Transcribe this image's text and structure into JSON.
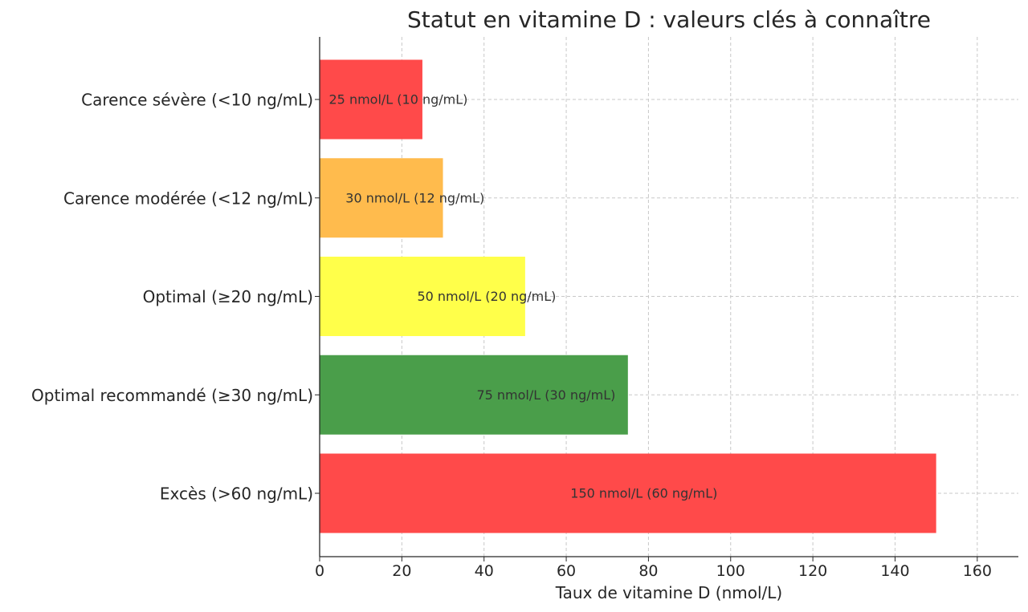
{
  "chart_data": {
    "type": "bar",
    "orientation": "horizontal",
    "title": "Statut en vitamine D : valeurs clés à connaître",
    "xlabel": "Taux de vitamine D (nmol/L)",
    "ylabel": "",
    "xlim": [
      0,
      170
    ],
    "xticks": [
      0,
      20,
      40,
      60,
      80,
      100,
      120,
      140,
      160
    ],
    "grid": true,
    "categories": [
      "Carence sévère (<10 ng/mL)",
      "Carence modérée (<12 ng/mL)",
      "Optimal (≥20 ng/mL)",
      "Optimal recommandé (≥30 ng/mL)",
      "Excès (>60 ng/mL)"
    ],
    "values": [
      25,
      30,
      50,
      75,
      150
    ],
    "data_labels": [
      "25 nmol/L (10 ng/mL)",
      "30 nmol/L (12 ng/mL)",
      "50 nmol/L (20 ng/mL)",
      "75 nmol/L (30 ng/mL)",
      "150 nmol/L (60 ng/mL)"
    ],
    "colors": [
      "#ff4a4a",
      "#ffbb4d",
      "#ffff4a",
      "#4a9e4a",
      "#ff4a4a"
    ]
  }
}
